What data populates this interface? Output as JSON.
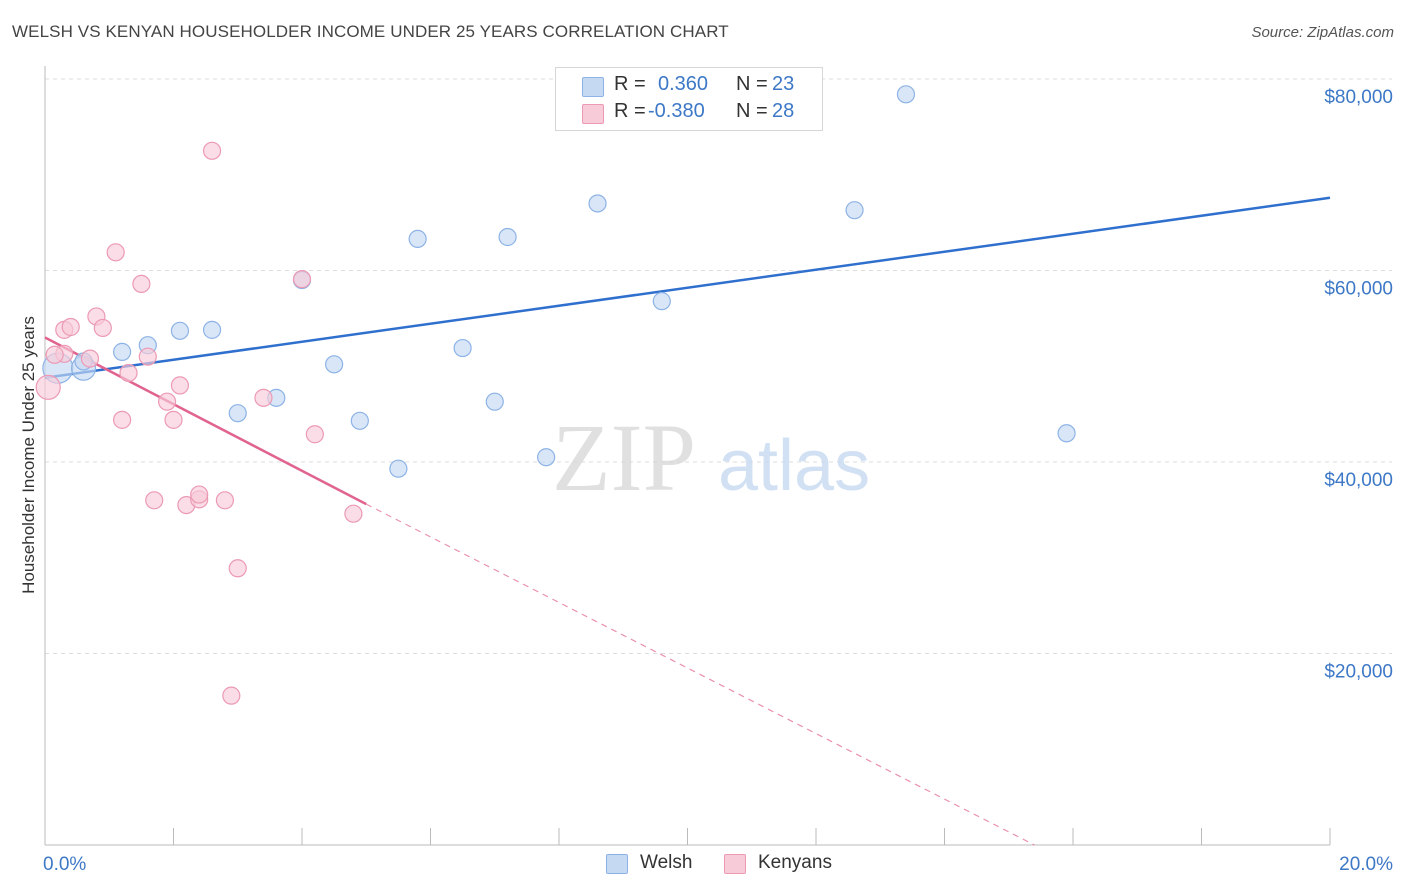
{
  "header": {
    "title": "WELSH VS KENYAN HOUSEHOLDER INCOME UNDER 25 YEARS CORRELATION CHART",
    "source": "Source: ZipAtlas.com"
  },
  "watermark": {
    "zip": "ZIP",
    "atlas": "atlas"
  },
  "legend_top": {
    "rows": [
      {
        "r_label": "R =",
        "r_value": "0.360",
        "n_label": "N =",
        "n_value": "23"
      },
      {
        "r_label": "R =",
        "r_value": "-0.380",
        "n_label": "N =",
        "n_value": "28"
      }
    ]
  },
  "legend_bottom": {
    "items": [
      "Welsh",
      "Kenyans"
    ]
  },
  "colors": {
    "welsh_fill": "#c5d9f3",
    "welsh_stroke": "#8db3e6",
    "welsh_line": "#2f6fce",
    "kenyan_fill": "#f8cbd9",
    "kenyan_stroke": "#ec9ab4",
    "kenyan_line": "#e0648f",
    "tick_text": "#3d78c6",
    "grid": "#dddddd"
  },
  "chart_data": {
    "type": "scatter",
    "title": "WELSH VS KENYAN HOUSEHOLDER INCOME UNDER 25 YEARS CORRELATION CHART",
    "xlabel": "",
    "ylabel": "Householder Income Under 25 years",
    "xlim": [
      0,
      20
    ],
    "ylim": [
      0,
      80000
    ],
    "x_tick_labels": [
      "0.0%",
      "20.0%"
    ],
    "y_ticks": [
      20000,
      40000,
      60000,
      80000
    ],
    "y_tick_labels": [
      "$20,000",
      "$40,000",
      "$60,000",
      "$80,000"
    ],
    "series": [
      {
        "name": "Welsh",
        "R": 0.36,
        "N": 23,
        "points": [
          [
            0.2,
            49800
          ],
          [
            0.6,
            49800
          ],
          [
            0.6,
            50500
          ],
          [
            1.2,
            51500
          ],
          [
            1.6,
            52200
          ],
          [
            2.1,
            53700
          ],
          [
            2.6,
            53800
          ],
          [
            3.0,
            45100
          ],
          [
            3.6,
            46700
          ],
          [
            4.0,
            59000
          ],
          [
            4.5,
            50200
          ],
          [
            4.9,
            44300
          ],
          [
            5.5,
            39300
          ],
          [
            5.8,
            63300
          ],
          [
            6.5,
            51900
          ],
          [
            7.0,
            46300
          ],
          [
            7.2,
            63500
          ],
          [
            7.8,
            40500
          ],
          [
            8.6,
            67000
          ],
          [
            9.6,
            56800
          ],
          [
            12.6,
            66300
          ],
          [
            13.4,
            78400
          ],
          [
            15.9,
            43000
          ]
        ],
        "trend": {
          "x": [
            0,
            20
          ],
          "y": [
            48800,
            67600
          ],
          "style": "solid"
        }
      },
      {
        "name": "Kenyans",
        "R": -0.38,
        "N": 28,
        "points": [
          [
            0.05,
            47800
          ],
          [
            0.3,
            51300
          ],
          [
            0.3,
            53800
          ],
          [
            0.4,
            54100
          ],
          [
            0.7,
            50800
          ],
          [
            0.8,
            55200
          ],
          [
            0.9,
            54000
          ],
          [
            1.1,
            61900
          ],
          [
            1.2,
            44400
          ],
          [
            1.3,
            49300
          ],
          [
            1.5,
            58600
          ],
          [
            1.6,
            51000
          ],
          [
            1.7,
            36000
          ],
          [
            1.9,
            46300
          ],
          [
            2.0,
            44400
          ],
          [
            2.1,
            48000
          ],
          [
            2.2,
            35500
          ],
          [
            2.4,
            36100
          ],
          [
            2.4,
            36600
          ],
          [
            2.6,
            72500
          ],
          [
            2.8,
            36000
          ],
          [
            2.9,
            15600
          ],
          [
            3.0,
            28900
          ],
          [
            3.4,
            46700
          ],
          [
            4.0,
            59100
          ],
          [
            4.2,
            42900
          ],
          [
            4.8,
            34600
          ],
          [
            0.15,
            51200
          ]
        ],
        "trend": {
          "x": [
            0,
            5.0
          ],
          "y": [
            53000,
            35600
          ],
          "style": "solid"
        },
        "trend_extension": {
          "x": [
            5.0,
            15.4
          ],
          "y": [
            35600,
            0
          ],
          "style": "dashed"
        }
      }
    ]
  }
}
